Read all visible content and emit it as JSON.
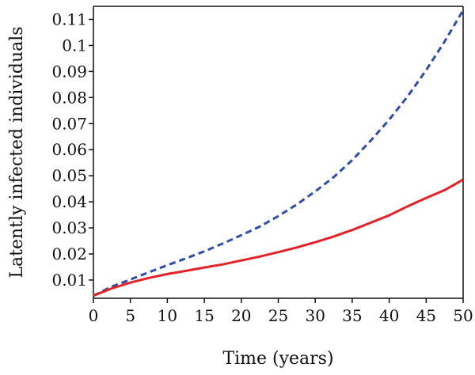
{
  "chart_data": {
    "type": "line",
    "title": "",
    "xlabel": "Time (years)",
    "ylabel": "Latently infected individuals",
    "xlim": [
      0,
      50
    ],
    "ylim": [
      0.003,
      0.115
    ],
    "xticks": [
      "0",
      "5",
      "10",
      "15",
      "20",
      "25",
      "30",
      "35",
      "40",
      "45",
      "50"
    ],
    "yticks": [
      "0.01",
      "0.02",
      "0.03",
      "0.04",
      "0.05",
      "0.06",
      "0.07",
      "0.08",
      "0.09",
      "0.1",
      "0.11"
    ],
    "grid": false,
    "legend": "none",
    "series": [
      {
        "style": "dashed",
        "color": "#2e4fa8",
        "x": [
          0,
          2.5,
          5,
          7.5,
          10,
          12.5,
          15,
          17.5,
          20,
          22.5,
          25,
          27.5,
          30,
          32.5,
          35,
          37.5,
          40,
          42.5,
          45,
          47.5,
          50
        ],
        "y": [
          0.004,
          0.0075,
          0.0102,
          0.013,
          0.0157,
          0.0183,
          0.021,
          0.024,
          0.0272,
          0.0305,
          0.0345,
          0.039,
          0.044,
          0.0495,
          0.056,
          0.0635,
          0.0715,
          0.0805,
          0.0905,
          0.1015,
          0.1135
        ]
      },
      {
        "style": "solid",
        "color": "#e52228",
        "x": [
          0,
          2.5,
          5,
          7.5,
          10,
          12.5,
          15,
          17.5,
          20,
          22.5,
          25,
          27.5,
          30,
          32.5,
          35,
          37.5,
          40,
          42.5,
          45,
          47.5,
          50
        ],
        "y": [
          0.004,
          0.0068,
          0.009,
          0.0108,
          0.0123,
          0.0135,
          0.0148,
          0.016,
          0.0175,
          0.019,
          0.0207,
          0.0225,
          0.0245,
          0.0267,
          0.0292,
          0.032,
          0.0348,
          0.0383,
          0.0415,
          0.0445,
          0.0485
        ]
      }
    ]
  }
}
